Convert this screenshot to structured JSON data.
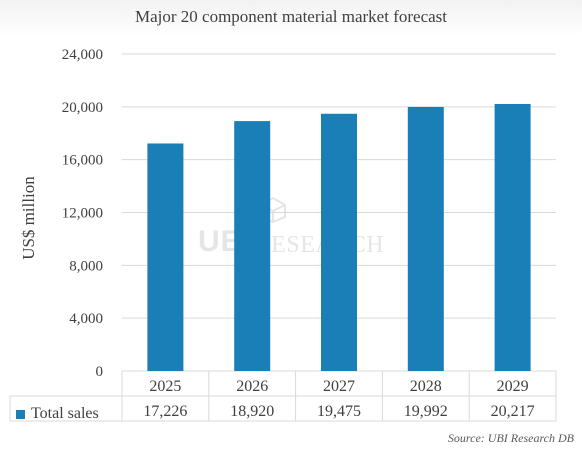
{
  "title": "Major 20 component material market forecast",
  "watermark": {
    "mark": "UBI",
    "text": "RESEARCH"
  },
  "source": "Source: UBI Research DB",
  "colors": {
    "bar": "#1a7eb7",
    "grid": "#d9d9d9",
    "text": "#404040"
  },
  "chart_data": {
    "type": "bar",
    "title": "Major 20 component material market forecast",
    "ylabel": "US$ million",
    "xlabel": "",
    "ylim": [
      0,
      24000
    ],
    "yticks": [
      0,
      4000,
      8000,
      12000,
      16000,
      20000,
      24000
    ],
    "ytick_labels": [
      "0",
      "4,000",
      "8,000",
      "12,000",
      "16,000",
      "20,000",
      "24,000"
    ],
    "grid": true,
    "categories": [
      "2025",
      "2026",
      "2027",
      "2028",
      "2029"
    ],
    "series": [
      {
        "name": "Total sales",
        "values": [
          17226,
          18920,
          19475,
          19992,
          20217
        ],
        "labels": [
          "17,226",
          "18,920",
          "19,475",
          "19,992",
          "20,217"
        ]
      }
    ],
    "legend": "bottom-left data table"
  }
}
